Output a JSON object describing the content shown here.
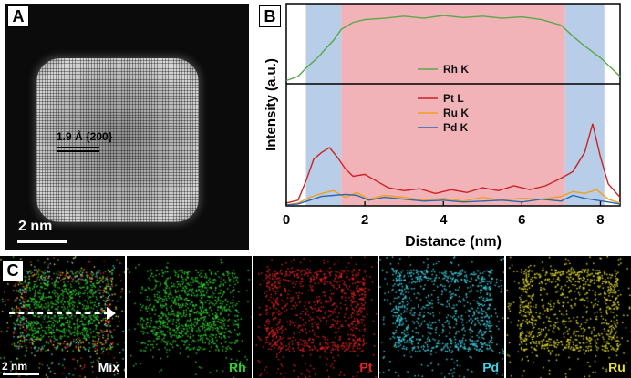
{
  "panels": {
    "a": {
      "letter": "A",
      "lattice_label": "1.9 Å {200}",
      "scalebar_label": "2 nm"
    },
    "b": {
      "letter": "B"
    },
    "c": {
      "letter": "C",
      "scalebar_label": "2 nm",
      "maps": [
        {
          "label": "Mix",
          "color": "#ffffff"
        },
        {
          "label": "Rh",
          "color": "#2fd12f"
        },
        {
          "label": "Pt",
          "color": "#e52222"
        },
        {
          "label": "Pd",
          "color": "#3fd6e6"
        },
        {
          "label": "Ru",
          "color": "#e6e02a"
        }
      ]
    }
  },
  "chart_data": {
    "type": "line",
    "xlabel": "Distance (nm)",
    "ylabel": "Intensity (a.u.)",
    "xlim": [
      0,
      8.5
    ],
    "xticks": [
      0,
      2,
      4,
      6,
      8
    ],
    "shaded_regions": [
      {
        "x0": 0.5,
        "x1": 1.4,
        "color": "#b8cde8"
      },
      {
        "x0": 1.4,
        "x1": 7.1,
        "color": "#f2b3b8"
      },
      {
        "x0": 7.1,
        "x1": 8.1,
        "color": "#b8cde8"
      }
    ],
    "top_panel": {
      "series": [
        {
          "name": "Rh K",
          "color": "#5aa84a",
          "x": [
            0,
            0.3,
            0.5,
            0.8,
            1.0,
            1.2,
            1.4,
            1.7,
            2.0,
            2.5,
            3.0,
            3.5,
            4.0,
            4.5,
            5.0,
            5.5,
            6.0,
            6.5,
            7.0,
            7.3,
            7.6,
            8.0,
            8.5
          ],
          "y": [
            0.02,
            0.08,
            0.2,
            0.35,
            0.48,
            0.6,
            0.76,
            0.86,
            0.9,
            0.92,
            0.95,
            0.92,
            0.96,
            0.93,
            0.95,
            0.92,
            0.94,
            0.9,
            0.82,
            0.66,
            0.52,
            0.35,
            0.08
          ]
        }
      ]
    },
    "bottom_panel": {
      "series": [
        {
          "name": "Pt L",
          "color": "#cc2222",
          "x": [
            0,
            0.3,
            0.5,
            0.7,
            0.9,
            1.1,
            1.3,
            1.5,
            1.7,
            2.0,
            2.3,
            2.6,
            3.0,
            3.4,
            3.8,
            4.2,
            4.6,
            5.0,
            5.4,
            5.8,
            6.2,
            6.6,
            7.0,
            7.3,
            7.6,
            7.8,
            8.0,
            8.2,
            8.5
          ],
          "y": [
            0.02,
            0.05,
            0.25,
            0.48,
            0.55,
            0.6,
            0.5,
            0.38,
            0.3,
            0.32,
            0.25,
            0.18,
            0.15,
            0.17,
            0.12,
            0.16,
            0.13,
            0.18,
            0.15,
            0.2,
            0.16,
            0.2,
            0.28,
            0.35,
            0.55,
            0.85,
            0.5,
            0.22,
            0.08
          ]
        },
        {
          "name": "Ru K",
          "color": "#f0a020",
          "x": [
            0,
            0.3,
            0.6,
            0.9,
            1.2,
            1.5,
            1.8,
            2.1,
            2.5,
            3.0,
            3.5,
            4.0,
            4.5,
            5.0,
            5.5,
            6.0,
            6.5,
            7.0,
            7.3,
            7.6,
            7.9,
            8.2,
            8.5
          ],
          "y": [
            0.0,
            0.02,
            0.08,
            0.12,
            0.15,
            0.08,
            0.13,
            0.06,
            0.1,
            0.08,
            0.05,
            0.07,
            0.04,
            0.08,
            0.05,
            0.07,
            0.06,
            0.09,
            0.14,
            0.12,
            0.16,
            0.06,
            0.02
          ]
        },
        {
          "name": "Pd K",
          "color": "#2a68b0",
          "x": [
            0,
            0.3,
            0.6,
            0.9,
            1.2,
            1.5,
            1.8,
            2.1,
            2.5,
            3.0,
            3.5,
            4.0,
            4.5,
            5.0,
            5.5,
            6.0,
            6.5,
            7.0,
            7.3,
            7.6,
            7.9,
            8.2,
            8.5
          ],
          "y": [
            0.0,
            0.01,
            0.05,
            0.09,
            0.1,
            0.11,
            0.1,
            0.05,
            0.08,
            0.06,
            0.04,
            0.05,
            0.03,
            0.04,
            0.05,
            0.03,
            0.06,
            0.04,
            0.1,
            0.07,
            0.05,
            0.03,
            0.01
          ]
        }
      ]
    }
  }
}
